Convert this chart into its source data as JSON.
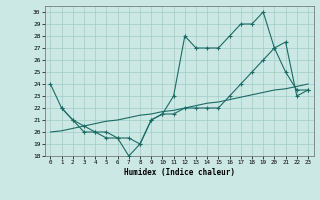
{
  "xlabel": "Humidex (Indice chaleur)",
  "xlim": [
    -0.5,
    23.5
  ],
  "ylim": [
    18,
    30.5
  ],
  "xticks": [
    0,
    1,
    2,
    3,
    4,
    5,
    6,
    7,
    8,
    9,
    10,
    11,
    12,
    13,
    14,
    15,
    16,
    17,
    18,
    19,
    20,
    21,
    22,
    23
  ],
  "yticks": [
    18,
    19,
    20,
    21,
    22,
    23,
    24,
    25,
    26,
    27,
    28,
    29,
    30
  ],
  "bg_color": "#cce8e4",
  "grid_color": "#a0ccc8",
  "line_color": "#1a6b65",
  "line1_x": [
    0,
    1,
    2,
    3,
    4,
    5,
    6,
    7,
    8,
    9,
    10,
    11,
    12,
    13,
    14,
    15,
    16,
    17,
    18,
    19,
    20,
    21,
    22,
    23
  ],
  "line1_y": [
    24,
    22,
    21,
    20,
    20,
    19.5,
    19.5,
    18,
    19,
    21,
    21.5,
    23,
    28,
    27,
    27,
    27,
    28,
    29,
    29,
    30,
    27,
    25,
    23.5,
    23.5
  ],
  "line2_x": [
    1,
    2,
    3,
    4,
    5,
    6,
    7,
    8,
    9,
    10,
    11,
    12,
    13,
    14,
    15,
    16,
    17,
    18,
    19,
    20,
    21,
    22,
    23
  ],
  "line2_y": [
    22,
    21,
    20.5,
    20,
    20,
    19.5,
    19.5,
    19,
    21,
    21.5,
    21.5,
    22,
    22,
    22,
    22,
    23,
    24,
    25,
    26,
    27,
    27.5,
    23,
    23.5
  ],
  "line3_x": [
    0,
    1,
    2,
    3,
    4,
    5,
    6,
    7,
    8,
    9,
    10,
    11,
    12,
    13,
    14,
    15,
    16,
    17,
    18,
    19,
    20,
    21,
    22,
    23
  ],
  "line3_y": [
    20,
    20.1,
    20.3,
    20.5,
    20.7,
    20.9,
    21.0,
    21.2,
    21.4,
    21.5,
    21.7,
    21.8,
    22.0,
    22.2,
    22.4,
    22.5,
    22.7,
    22.9,
    23.1,
    23.3,
    23.5,
    23.6,
    23.8,
    24.0
  ]
}
